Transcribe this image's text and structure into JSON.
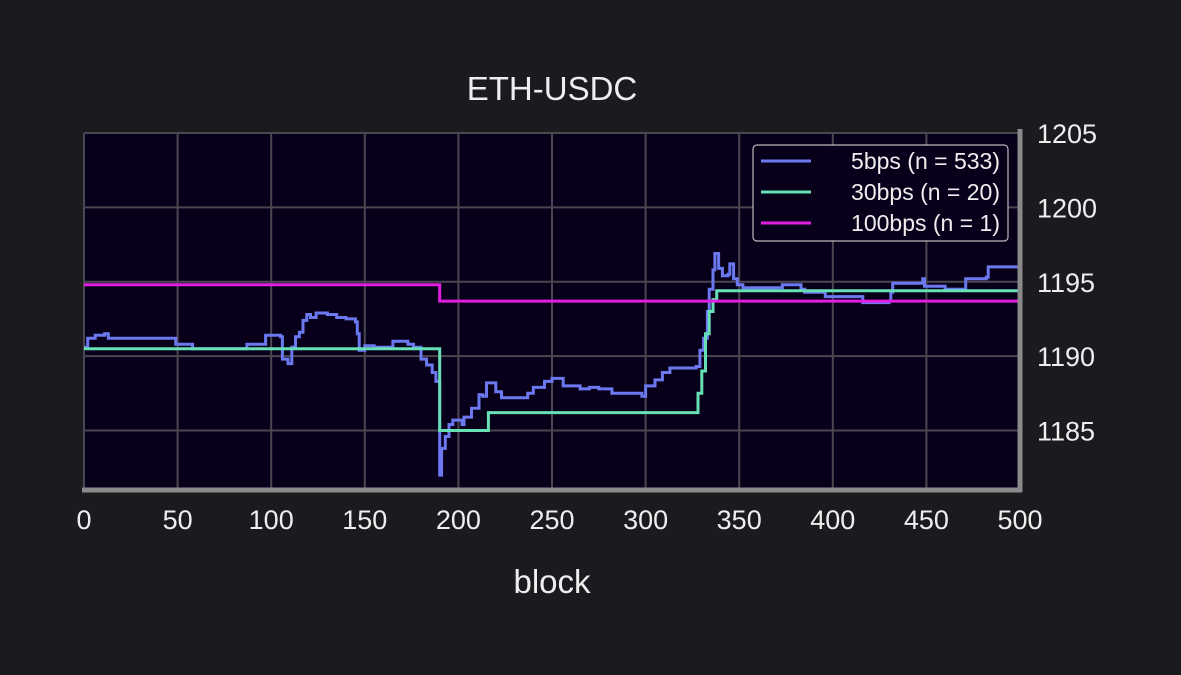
{
  "chart_data": {
    "type": "line",
    "title": "ETH-USDC",
    "xlabel": "block",
    "ylabel": "",
    "xlim": [
      0,
      500
    ],
    "ylim": [
      1181,
      1205
    ],
    "xticks": [
      0,
      50,
      100,
      150,
      200,
      250,
      300,
      350,
      400,
      450,
      500
    ],
    "yticks": [
      1185,
      1190,
      1195,
      1200,
      1205
    ],
    "y_axis_side": "right",
    "grid": true,
    "legend_position": "top-right",
    "colors": {
      "background": "#1b1a1f",
      "plot_background": "#08001a",
      "grid": "#4a4750",
      "axis": "#8a8a8a",
      "text": "#eeeeee"
    },
    "series": [
      {
        "name": "5bps (n = 533)",
        "color": "#6b78f0",
        "style": "step",
        "points": [
          [
            0,
            1190.6
          ],
          [
            2,
            1191.2
          ],
          [
            6,
            1191.4
          ],
          [
            11,
            1191.5
          ],
          [
            13,
            1191.2
          ],
          [
            48,
            1191.2
          ],
          [
            49,
            1190.8
          ],
          [
            57,
            1190.8
          ],
          [
            58,
            1190.5
          ],
          [
            86,
            1190.5
          ],
          [
            87,
            1190.8
          ],
          [
            95,
            1190.8
          ],
          [
            97,
            1191.4
          ],
          [
            105,
            1191.3
          ],
          [
            106,
            1189.8
          ],
          [
            109,
            1189.5
          ],
          [
            111,
            1190.6
          ],
          [
            113,
            1191.3
          ],
          [
            115,
            1191.6
          ],
          [
            117,
            1192.4
          ],
          [
            119,
            1192.8
          ],
          [
            121,
            1192.6
          ],
          [
            124,
            1192.9
          ],
          [
            130,
            1192.8
          ],
          [
            135,
            1192.6
          ],
          [
            140,
            1192.5
          ],
          [
            145,
            1192.3
          ],
          [
            146,
            1191.5
          ],
          [
            147,
            1190.4
          ],
          [
            150,
            1190.7
          ],
          [
            155,
            1190.6
          ],
          [
            165,
            1191.0
          ],
          [
            173,
            1190.8
          ],
          [
            176,
            1190.6
          ],
          [
            180,
            1189.8
          ],
          [
            183,
            1189.4
          ],
          [
            186,
            1188.9
          ],
          [
            188,
            1188.3
          ],
          [
            190,
            1182.0
          ],
          [
            191,
            1183.8
          ],
          [
            193,
            1184.6
          ],
          [
            195,
            1185.4
          ],
          [
            197,
            1185.7
          ],
          [
            202,
            1185.4
          ],
          [
            203,
            1185.9
          ],
          [
            207,
            1186.5
          ],
          [
            211,
            1187.4
          ],
          [
            213,
            1187.3
          ],
          [
            215,
            1188.2
          ],
          [
            220,
            1187.6
          ],
          [
            223,
            1187.2
          ],
          [
            237,
            1187.5
          ],
          [
            240,
            1187.9
          ],
          [
            246,
            1188.3
          ],
          [
            250,
            1188.5
          ],
          [
            255,
            1188.5
          ],
          [
            256,
            1188.0
          ],
          [
            260,
            1188.0
          ],
          [
            265,
            1187.8
          ],
          [
            270,
            1187.9
          ],
          [
            275,
            1187.8
          ],
          [
            282,
            1187.5
          ],
          [
            297,
            1187.5
          ],
          [
            298,
            1187.3
          ],
          [
            300,
            1188.0
          ],
          [
            305,
            1188.4
          ],
          [
            309,
            1188.9
          ],
          [
            313,
            1189.2
          ],
          [
            327,
            1189.3
          ],
          [
            329,
            1190.4
          ],
          [
            331,
            1191.2
          ],
          [
            333,
            1193.0
          ],
          [
            334,
            1194.5
          ],
          [
            336,
            1195.8
          ],
          [
            337,
            1196.9
          ],
          [
            339,
            1195.9
          ],
          [
            341,
            1195.4
          ],
          [
            344,
            1195.5
          ],
          [
            345,
            1196.2
          ],
          [
            347,
            1195.2
          ],
          [
            349,
            1194.8
          ],
          [
            352,
            1194.6
          ],
          [
            372,
            1194.6
          ],
          [
            373,
            1194.8
          ],
          [
            382,
            1194.8
          ],
          [
            383,
            1194.5
          ],
          [
            385,
            1194.3
          ],
          [
            395,
            1194.3
          ],
          [
            396,
            1194.0
          ],
          [
            415,
            1194.0
          ],
          [
            416,
            1193.6
          ],
          [
            430,
            1193.7
          ],
          [
            431,
            1194.3
          ],
          [
            432,
            1194.9
          ],
          [
            447,
            1194.9
          ],
          [
            448,
            1195.2
          ],
          [
            449,
            1194.7
          ],
          [
            460,
            1194.5
          ],
          [
            470,
            1194.5
          ],
          [
            471,
            1195.2
          ],
          [
            482,
            1195.3
          ],
          [
            483,
            1196.0
          ],
          [
            497,
            1196.0
          ],
          [
            500,
            1195.8
          ]
        ]
      },
      {
        "name": "30bps (n = 20)",
        "color": "#66e0b4",
        "style": "step",
        "points": [
          [
            0,
            1190.5
          ],
          [
            190,
            1190.5
          ],
          [
            190,
            1185.0
          ],
          [
            215,
            1185.0
          ],
          [
            216,
            1186.2
          ],
          [
            326,
            1186.2
          ],
          [
            328,
            1187.5
          ],
          [
            330,
            1189.0
          ],
          [
            332,
            1191.5
          ],
          [
            334,
            1193.0
          ],
          [
            336,
            1193.8
          ],
          [
            338,
            1194.4
          ],
          [
            500,
            1194.4
          ]
        ]
      },
      {
        "name": "100bps (n = 1)",
        "color": "#e21de2",
        "style": "step",
        "points": [
          [
            0,
            1194.8
          ],
          [
            190,
            1194.8
          ],
          [
            190,
            1193.7
          ],
          [
            500,
            1193.7
          ]
        ]
      }
    ]
  }
}
